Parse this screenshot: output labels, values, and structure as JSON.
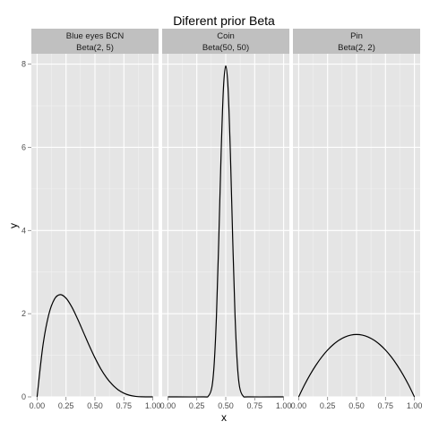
{
  "chart_data": {
    "type": "line",
    "title": "Diferent prior Beta",
    "xlabel": "x",
    "ylabel": "y",
    "xlim": [
      0,
      1
    ],
    "ylim": [
      0,
      8.25
    ],
    "x_ticks": [
      "0.00",
      "0.25",
      "0.50",
      "0.75",
      "1.00"
    ],
    "x_tick_values": [
      0,
      0.25,
      0.5,
      0.75,
      1.0
    ],
    "y_ticks": [
      "0",
      "2",
      "4",
      "6",
      "8"
    ],
    "y_tick_values": [
      0,
      2,
      4,
      6,
      8
    ],
    "grid": true,
    "colors": {
      "panel_bg": "#e5e5e5",
      "strip_bg": "#c0c0c0",
      "grid_major": "#ffffff",
      "grid_minor": "#f2f2f2",
      "line": "#000000"
    },
    "panels": [
      {
        "name": "Blue eyes BCN",
        "subtitle": "Beta(2, 5)",
        "x": [
          0.0,
          0.05,
          0.1,
          0.15,
          0.2,
          0.25,
          0.3,
          0.35,
          0.4,
          0.45,
          0.5,
          0.55,
          0.6,
          0.65,
          0.7,
          0.75,
          0.8,
          0.85,
          0.9,
          0.95,
          1.0
        ],
        "y": [
          0.0,
          1.222,
          1.968,
          2.349,
          2.458,
          2.373,
          2.161,
          1.874,
          1.555,
          1.236,
          0.938,
          0.675,
          0.461,
          0.294,
          0.17,
          0.088,
          0.038,
          0.012,
          0.002,
          0.0,
          0.0
        ]
      },
      {
        "name": "Coin",
        "subtitle": "Beta(50, 50)",
        "x": [
          0.0,
          0.3,
          0.35,
          0.38,
          0.4,
          0.42,
          0.44,
          0.46,
          0.48,
          0.5,
          0.52,
          0.54,
          0.56,
          0.58,
          0.6,
          0.62,
          0.65,
          0.7,
          1.0
        ],
        "y": [
          0.0,
          0.0,
          0.02,
          0.23,
          0.79,
          1.97,
          3.81,
          5.86,
          7.42,
          7.96,
          7.42,
          5.86,
          3.81,
          1.97,
          0.79,
          0.23,
          0.02,
          0.0,
          0.0
        ]
      },
      {
        "name": "Pin",
        "subtitle": "Beta(2, 2)",
        "x": [
          0.0,
          0.05,
          0.1,
          0.15,
          0.2,
          0.25,
          0.3,
          0.35,
          0.4,
          0.45,
          0.5,
          0.55,
          0.6,
          0.65,
          0.7,
          0.75,
          0.8,
          0.85,
          0.9,
          0.95,
          1.0
        ],
        "y": [
          0.0,
          0.285,
          0.54,
          0.765,
          0.96,
          1.125,
          1.26,
          1.365,
          1.44,
          1.485,
          1.5,
          1.485,
          1.44,
          1.365,
          1.26,
          1.125,
          0.96,
          0.765,
          0.54,
          0.285,
          0.0
        ]
      }
    ]
  }
}
